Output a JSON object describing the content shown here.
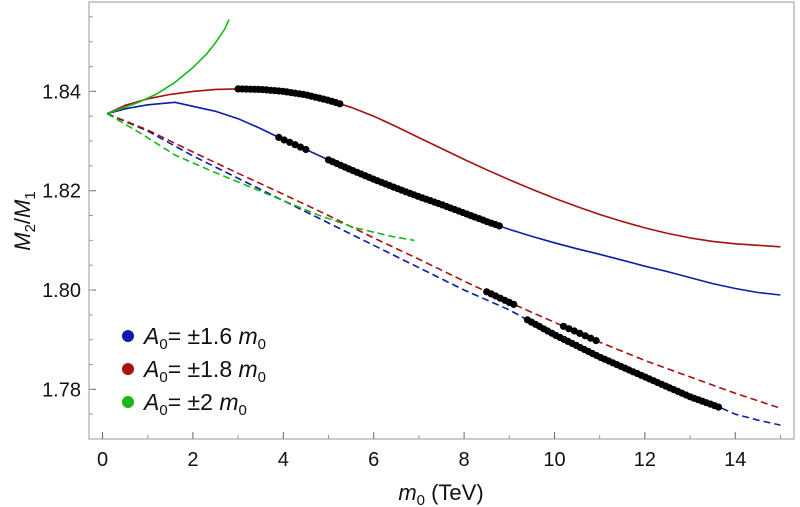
{
  "chart_data": {
    "type": "line",
    "xlabel": {
      "var": "m",
      "sub": "0",
      "unit": " (TeV)"
    },
    "ylabel": {
      "num": "M",
      "num_sub": "2",
      "den": "M",
      "den_sub": "1"
    },
    "xlim": [
      -0.3,
      15.3
    ],
    "ylim": [
      1.77,
      1.858
    ],
    "xticks": [
      0,
      2,
      4,
      6,
      8,
      10,
      12,
      14
    ],
    "yticks": [
      1.78,
      1.8,
      1.82,
      1.84
    ],
    "xtick_labels": [
      "0",
      "2",
      "4",
      "6",
      "8",
      "10",
      "12",
      "14"
    ],
    "ytick_labels": [
      "1.78",
      "1.80",
      "1.82",
      "1.84"
    ],
    "colors": {
      "blue": "#0a1fa3",
      "red": "#a81010",
      "green": "#17b817",
      "marker": "#000000"
    },
    "legend": [
      {
        "name": "blue-series",
        "prefix": "A",
        "prefix_sub": "0",
        "text": "= ±1.6 ",
        "var": "m",
        "var_sub": "0",
        "color": "#0a1fa3"
      },
      {
        "name": "red-series",
        "prefix": "A",
        "prefix_sub": "0",
        "text": "= ±1.8 ",
        "var": "m",
        "var_sub": "0",
        "color": "#a81010"
      },
      {
        "name": "green-series",
        "prefix": "A",
        "prefix_sub": "0",
        "text": "= ±2 ",
        "var": "m",
        "var_sub": "0",
        "color": "#17b817"
      }
    ],
    "series": [
      {
        "name": "blue-solid",
        "color": "#0a1fa3",
        "dash": false,
        "x": [
          0.1,
          0.5,
          1.0,
          1.6,
          2.0,
          2.5,
          3.0,
          3.5,
          4.0,
          4.5,
          5.0,
          5.5,
          6.0,
          6.5,
          7.0,
          7.5,
          8.0,
          8.5,
          9.0,
          9.5,
          10.0,
          10.5,
          11.0,
          11.5,
          12.0,
          12.5,
          13.0,
          13.5,
          14.0,
          14.5,
          15.0
        ],
        "y": [
          1.8355,
          1.8365,
          1.8373,
          1.8378,
          1.837,
          1.836,
          1.8345,
          1.8325,
          1.8303,
          1.8283,
          1.8262,
          1.8242,
          1.8223,
          1.8205,
          1.8188,
          1.8172,
          1.8155,
          1.8138,
          1.8122,
          1.8108,
          1.8095,
          1.8083,
          1.8072,
          1.806,
          1.8048,
          1.8037,
          1.8025,
          1.8013,
          1.8003,
          1.7995,
          1.799
        ]
      },
      {
        "name": "red-solid",
        "color": "#a81010",
        "dash": false,
        "x": [
          0.1,
          0.5,
          1.0,
          1.5,
          2.0,
          2.5,
          3.0,
          3.5,
          4.0,
          4.5,
          5.0,
          5.5,
          6.0,
          6.5,
          7.0,
          7.5,
          8.0,
          8.5,
          9.0,
          9.5,
          10.0,
          10.5,
          11.0,
          11.5,
          12.0,
          12.5,
          13.0,
          13.5,
          14.0,
          14.5,
          15.0
        ],
        "y": [
          1.8355,
          1.8372,
          1.8385,
          1.8394,
          1.84,
          1.8404,
          1.8405,
          1.8404,
          1.84,
          1.8393,
          1.8382,
          1.8368,
          1.835,
          1.8329,
          1.8307,
          1.8285,
          1.8263,
          1.8242,
          1.8222,
          1.8203,
          1.8185,
          1.8168,
          1.8152,
          1.8138,
          1.8125,
          1.8114,
          1.8105,
          1.8098,
          1.8093,
          1.809,
          1.8087
        ]
      },
      {
        "name": "green-solid",
        "color": "#17b817",
        "dash": false,
        "x": [
          0.1,
          0.4,
          0.8,
          1.2,
          1.6,
          2.0,
          2.3,
          2.5,
          2.7,
          2.8
        ],
        "y": [
          1.8355,
          1.8365,
          1.8378,
          1.8395,
          1.8418,
          1.8448,
          1.8475,
          1.8498,
          1.8525,
          1.8545
        ]
      },
      {
        "name": "blue-dashed",
        "color": "#0a1fa3",
        "dash": true,
        "x": [
          0.1,
          1.0,
          2.0,
          3.0,
          4.0,
          5.0,
          6.0,
          7.0,
          8.0,
          9.0,
          10.0,
          11.0,
          12.0,
          13.0,
          13.7,
          14.0,
          14.5,
          15.0
        ],
        "y": [
          1.8355,
          1.832,
          1.827,
          1.8225,
          1.818,
          1.8135,
          1.809,
          1.8045,
          1.8,
          1.796,
          1.791,
          1.7865,
          1.7825,
          1.7785,
          1.7762,
          1.775,
          1.7738,
          1.7728
        ]
      },
      {
        "name": "red-dashed",
        "color": "#a81010",
        "dash": true,
        "x": [
          0.1,
          1.0,
          2.0,
          3.0,
          4.0,
          5.0,
          6.0,
          7.0,
          8.0,
          9.0,
          10.0,
          11.0,
          12.0,
          13.0,
          14.0,
          15.0
        ],
        "y": [
          1.8355,
          1.8322,
          1.8278,
          1.8235,
          1.8193,
          1.815,
          1.8105,
          1.8062,
          1.8018,
          1.7975,
          1.7935,
          1.7895,
          1.7858,
          1.7825,
          1.7792,
          1.7762
        ]
      },
      {
        "name": "green-dashed",
        "color": "#17b817",
        "dash": true,
        "x": [
          0.1,
          0.8,
          1.6,
          2.4,
          3.2,
          4.0,
          4.8,
          5.6,
          6.4,
          6.9
        ],
        "y": [
          1.8355,
          1.8318,
          1.8272,
          1.824,
          1.821,
          1.818,
          1.815,
          1.8125,
          1.8108,
          1.81
        ]
      }
    ],
    "marker_runs": [
      {
        "name": "red-solid-markers",
        "on": "red-solid",
        "x_from": 3.0,
        "x_to": 5.3,
        "step": 0.09
      },
      {
        "name": "blue-solid-markers-a",
        "on": "blue-solid",
        "x_from": 3.9,
        "x_to": 4.6,
        "step": 0.12
      },
      {
        "name": "blue-solid-markers-b",
        "on": "blue-solid",
        "x_from": 5.0,
        "x_to": 8.8,
        "step": 0.09
      },
      {
        "name": "red-dashed-markers",
        "on": "red-dashed",
        "x_from": 8.5,
        "x_to": 9.1,
        "step": 0.1
      },
      {
        "name": "blue-dashed-markers-a",
        "on": "blue-dashed",
        "x_from": 9.4,
        "x_to": 13.7,
        "step": 0.09
      },
      {
        "name": "red-dashed-markers-b",
        "on": "red-dashed",
        "x_from": 10.2,
        "x_to": 11.0,
        "step": 0.12
      }
    ]
  }
}
